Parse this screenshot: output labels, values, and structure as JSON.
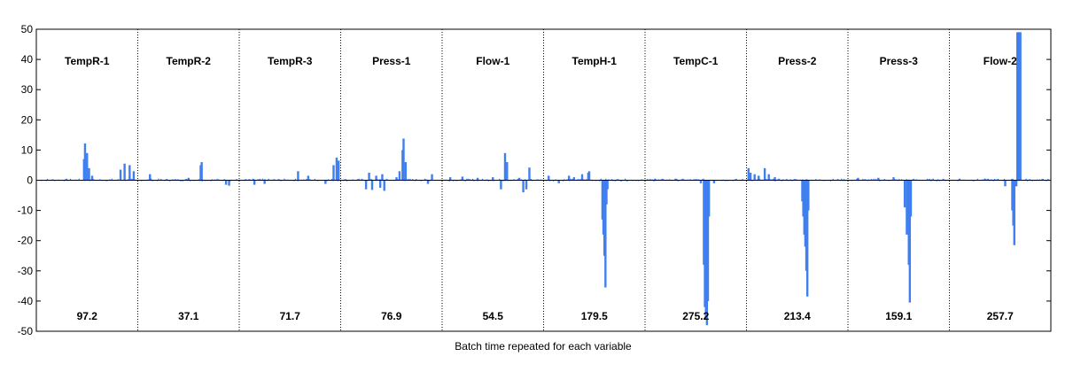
{
  "chart_data": {
    "type": "bar",
    "title": "",
    "xlabel": "Batch time repeated for each variable",
    "ylabel": "",
    "ylim": [
      -50,
      50
    ],
    "yticks": [
      -50,
      -40,
      -30,
      -20,
      -10,
      0,
      10,
      20,
      30,
      40,
      50
    ],
    "grid": false,
    "legend": "none",
    "bar_color": "#3f7ff0",
    "sections": [
      {
        "name": "TempR-1",
        "value": "97.2",
        "peaks": [
          {
            "at": 0.47,
            "h": 7.0
          },
          {
            "at": 0.48,
            "h": 12.2
          },
          {
            "at": 0.5,
            "h": 9.0
          },
          {
            "at": 0.52,
            "h": 4.0
          },
          {
            "at": 0.55,
            "h": 1.5
          },
          {
            "at": 0.83,
            "h": 3.5
          },
          {
            "at": 0.87,
            "h": 5.5
          },
          {
            "at": 0.92,
            "h": 5.0
          },
          {
            "at": 0.96,
            "h": 3.0
          }
        ]
      },
      {
        "name": "TempR-2",
        "value": "37.1",
        "peaks": [
          {
            "at": 0.12,
            "h": 2.0
          },
          {
            "at": 0.5,
            "h": 0.8
          },
          {
            "at": 0.62,
            "h": 5.0
          },
          {
            "at": 0.63,
            "h": 6.0
          },
          {
            "at": 0.87,
            "h": -1.5
          },
          {
            "at": 0.9,
            "h": -1.8
          }
        ]
      },
      {
        "name": "TempR-3",
        "value": "71.7",
        "peaks": [
          {
            "at": 0.15,
            "h": -1.5
          },
          {
            "at": 0.25,
            "h": -1.2
          },
          {
            "at": 0.58,
            "h": 3.0
          },
          {
            "at": 0.68,
            "h": 1.5
          },
          {
            "at": 0.85,
            "h": -1.2
          },
          {
            "at": 0.93,
            "h": 5.0
          },
          {
            "at": 0.96,
            "h": 7.5
          },
          {
            "at": 0.98,
            "h": 6.5
          }
        ]
      },
      {
        "name": "Press-1",
        "value": "76.9",
        "peaks": [
          {
            "at": 0.25,
            "h": -3.0
          },
          {
            "at": 0.28,
            "h": 2.5
          },
          {
            "at": 0.31,
            "h": -3.2
          },
          {
            "at": 0.35,
            "h": 1.5
          },
          {
            "at": 0.39,
            "h": -2.5
          },
          {
            "at": 0.41,
            "h": 2.0
          },
          {
            "at": 0.43,
            "h": -3.5
          },
          {
            "at": 0.55,
            "h": 1.0
          },
          {
            "at": 0.58,
            "h": 3.0
          },
          {
            "at": 0.61,
            "h": 10.0
          },
          {
            "at": 0.62,
            "h": 13.8
          },
          {
            "at": 0.64,
            "h": 6.0
          },
          {
            "at": 0.86,
            "h": -1.2
          },
          {
            "at": 0.9,
            "h": 2.0
          }
        ]
      },
      {
        "name": "Flow-1",
        "value": "54.5",
        "peaks": [
          {
            "at": 0.08,
            "h": 1.0
          },
          {
            "at": 0.2,
            "h": 1.2
          },
          {
            "at": 0.35,
            "h": 0.8
          },
          {
            "at": 0.5,
            "h": 1.0
          },
          {
            "at": 0.58,
            "h": -3.0
          },
          {
            "at": 0.62,
            "h": 9.0
          },
          {
            "at": 0.64,
            "h": 6.0
          },
          {
            "at": 0.76,
            "h": 0.8
          },
          {
            "at": 0.8,
            "h": -4.0
          },
          {
            "at": 0.83,
            "h": -3.0
          },
          {
            "at": 0.86,
            "h": 4.2
          }
        ]
      },
      {
        "name": "TempH-1",
        "value": "179.5",
        "peaks": [
          {
            "at": 0.05,
            "h": 1.5
          },
          {
            "at": 0.15,
            "h": -1.0
          },
          {
            "at": 0.25,
            "h": 1.5
          },
          {
            "at": 0.3,
            "h": 1.0
          },
          {
            "at": 0.38,
            "h": 2.0
          },
          {
            "at": 0.44,
            "h": 2.5
          },
          {
            "at": 0.45,
            "h": 3.0
          },
          {
            "at": 0.58,
            "h": -13.0
          },
          {
            "at": 0.59,
            "h": -18.0
          },
          {
            "at": 0.6,
            "h": -25.0
          },
          {
            "at": 0.61,
            "h": -35.5
          },
          {
            "at": 0.62,
            "h": -8.0
          },
          {
            "at": 0.63,
            "h": -3.0
          }
        ]
      },
      {
        "name": "TempC-1",
        "value": "275.2",
        "peaks": [
          {
            "at": 0.1,
            "h": 0.5
          },
          {
            "at": 0.3,
            "h": 0.5
          },
          {
            "at": 0.55,
            "h": -1.0
          },
          {
            "at": 0.58,
            "h": -28.0
          },
          {
            "at": 0.59,
            "h": -42.0
          },
          {
            "at": 0.6,
            "h": -46.0
          },
          {
            "at": 0.61,
            "h": -48.0
          },
          {
            "at": 0.62,
            "h": -40.0
          },
          {
            "at": 0.63,
            "h": -12.0
          },
          {
            "at": 0.68,
            "h": -1.0
          }
        ]
      },
      {
        "name": "Press-2",
        "value": "213.4",
        "peaks": [
          {
            "at": 0.02,
            "h": 4.0
          },
          {
            "at": 0.04,
            "h": 2.5
          },
          {
            "at": 0.08,
            "h": 2.0
          },
          {
            "at": 0.12,
            "h": 1.5
          },
          {
            "at": 0.18,
            "h": 4.0
          },
          {
            "at": 0.22,
            "h": 2.0
          },
          {
            "at": 0.28,
            "h": 1.0
          },
          {
            "at": 0.55,
            "h": -7.0
          },
          {
            "at": 0.56,
            "h": -12.0
          },
          {
            "at": 0.57,
            "h": -18.0
          },
          {
            "at": 0.58,
            "h": -22.0
          },
          {
            "at": 0.59,
            "h": -30.0
          },
          {
            "at": 0.6,
            "h": -38.5
          },
          {
            "at": 0.61,
            "h": -10.0
          }
        ]
      },
      {
        "name": "Press-3",
        "value": "159.1",
        "peaks": [
          {
            "at": 0.1,
            "h": 0.8
          },
          {
            "at": 0.3,
            "h": 0.8
          },
          {
            "at": 0.45,
            "h": 1.0
          },
          {
            "at": 0.56,
            "h": -9.0
          },
          {
            "at": 0.58,
            "h": -18.0
          },
          {
            "at": 0.6,
            "h": -28.0
          },
          {
            "at": 0.61,
            "h": -40.5
          },
          {
            "at": 0.62,
            "h": -12.0
          }
        ]
      },
      {
        "name": "Flow-2",
        "value": "257.7",
        "peaks": [
          {
            "at": 0.1,
            "h": 0.5
          },
          {
            "at": 0.35,
            "h": 0.5
          },
          {
            "at": 0.55,
            "h": -2.0
          },
          {
            "at": 0.62,
            "h": -10.0
          },
          {
            "at": 0.63,
            "h": -15.0
          },
          {
            "at": 0.64,
            "h": -21.5
          },
          {
            "at": 0.66,
            "h": -2.0
          },
          {
            "at": 0.67,
            "h": 49.0
          },
          {
            "at": 0.68,
            "h": 49.0
          },
          {
            "at": 0.69,
            "h": 49.0
          },
          {
            "at": 0.7,
            "h": 49.0
          }
        ]
      }
    ]
  }
}
